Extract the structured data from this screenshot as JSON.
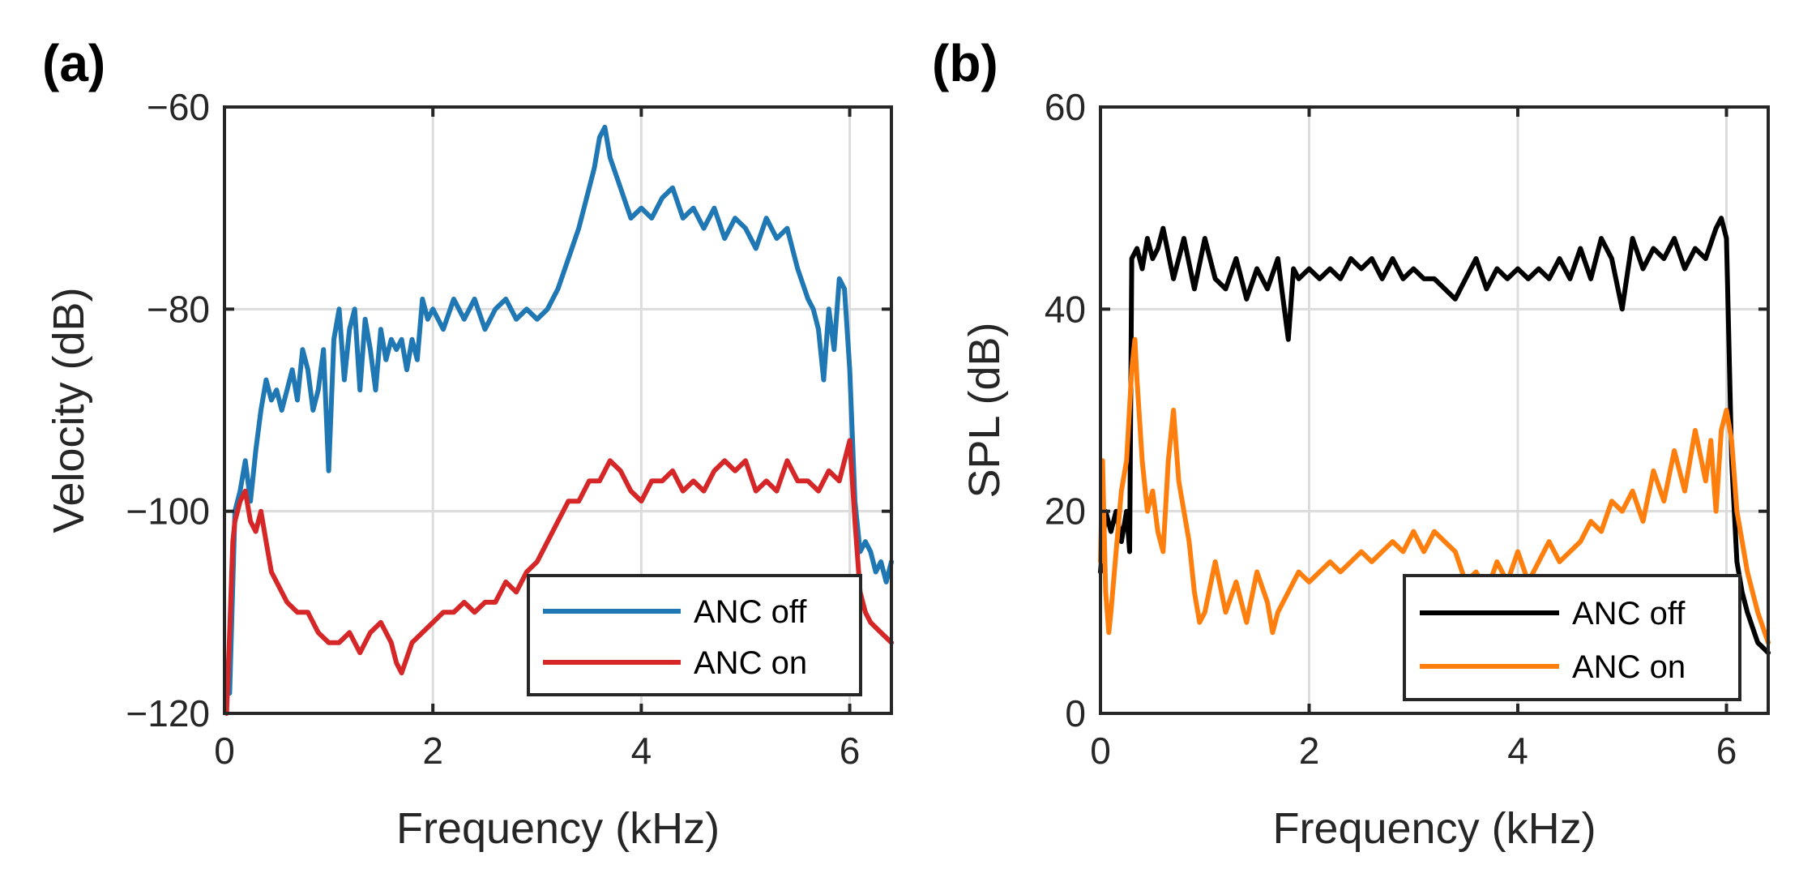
{
  "chart_data": [
    {
      "type": "line",
      "panel_label": "(a)",
      "xlabel": "Frequency (kHz)",
      "ylabel": "Velocity (dB)",
      "xlim": [
        0,
        6.4
      ],
      "ylim": [
        -120,
        -60
      ],
      "xticks": [
        0,
        2,
        4,
        6
      ],
      "xtick_labels": [
        "0",
        "2",
        "4",
        "6"
      ],
      "yticks": [
        -120,
        -100,
        -80,
        -60
      ],
      "ytick_labels": [
        "−120",
        "−100",
        "−80",
        "−60"
      ],
      "grid": true,
      "legend_position": "bottom-right",
      "series": [
        {
          "name": "ANC off",
          "color": "#1f77b4",
          "x": [
            0.05,
            0.1,
            0.15,
            0.2,
            0.25,
            0.3,
            0.35,
            0.4,
            0.45,
            0.5,
            0.55,
            0.6,
            0.65,
            0.7,
            0.75,
            0.8,
            0.85,
            0.9,
            0.95,
            1.0,
            1.05,
            1.1,
            1.15,
            1.2,
            1.25,
            1.3,
            1.35,
            1.4,
            1.45,
            1.5,
            1.55,
            1.6,
            1.65,
            1.7,
            1.75,
            1.8,
            1.85,
            1.9,
            1.95,
            2.0,
            2.1,
            2.2,
            2.3,
            2.4,
            2.5,
            2.6,
            2.7,
            2.8,
            2.9,
            3.0,
            3.1,
            3.2,
            3.3,
            3.4,
            3.5,
            3.55,
            3.6,
            3.65,
            3.7,
            3.8,
            3.9,
            4.0,
            4.1,
            4.2,
            4.3,
            4.4,
            4.5,
            4.6,
            4.7,
            4.8,
            4.9,
            5.0,
            5.1,
            5.2,
            5.3,
            5.4,
            5.5,
            5.6,
            5.65,
            5.7,
            5.75,
            5.8,
            5.85,
            5.9,
            5.95,
            6.0,
            6.05,
            6.1,
            6.15,
            6.2,
            6.25,
            6.3,
            6.35,
            6.4
          ],
          "values": [
            -118,
            -100,
            -98,
            -95,
            -99,
            -94,
            -90,
            -87,
            -89,
            -88,
            -90,
            -88,
            -86,
            -89,
            -84,
            -86,
            -90,
            -88,
            -84,
            -96,
            -83,
            -80,
            -87,
            -82,
            -80,
            -88,
            -81,
            -84,
            -88,
            -82,
            -85,
            -83,
            -84,
            -83,
            -86,
            -83,
            -85,
            -79,
            -81,
            -80,
            -82,
            -79,
            -81,
            -79,
            -82,
            -80,
            -79,
            -81,
            -80,
            -81,
            -80,
            -78,
            -75,
            -72,
            -68,
            -66,
            -63,
            -62,
            -65,
            -68,
            -71,
            -70,
            -71,
            -69,
            -68,
            -71,
            -70,
            -72,
            -70,
            -73,
            -71,
            -72,
            -74,
            -71,
            -73,
            -72,
            -76,
            -79,
            -80,
            -82,
            -87,
            -80,
            -84,
            -77,
            -78,
            -86,
            -99,
            -104,
            -103,
            -104,
            -106,
            -105,
            -107,
            -105
          ]
        },
        {
          "name": "ANC on",
          "color": "#d62728",
          "x": [
            0.02,
            0.05,
            0.08,
            0.1,
            0.15,
            0.2,
            0.25,
            0.3,
            0.35,
            0.4,
            0.45,
            0.5,
            0.6,
            0.7,
            0.8,
            0.9,
            1.0,
            1.1,
            1.2,
            1.3,
            1.4,
            1.5,
            1.6,
            1.65,
            1.7,
            1.8,
            1.9,
            2.0,
            2.1,
            2.2,
            2.3,
            2.4,
            2.5,
            2.6,
            2.7,
            2.8,
            2.9,
            3.0,
            3.1,
            3.2,
            3.3,
            3.4,
            3.5,
            3.6,
            3.7,
            3.8,
            3.9,
            4.0,
            4.1,
            4.2,
            4.3,
            4.4,
            4.5,
            4.6,
            4.7,
            4.8,
            4.9,
            5.0,
            5.1,
            5.2,
            5.3,
            5.4,
            5.5,
            5.6,
            5.7,
            5.8,
            5.9,
            6.0,
            6.05,
            6.1,
            6.15,
            6.2,
            6.3,
            6.4
          ],
          "values": [
            -120,
            -112,
            -103,
            -101,
            -99,
            -98,
            -101,
            -102,
            -100,
            -103,
            -106,
            -107,
            -109,
            -110,
            -110,
            -112,
            -113,
            -113,
            -112,
            -114,
            -112,
            -111,
            -113,
            -115,
            -116,
            -113,
            -112,
            -111,
            -110,
            -110,
            -109,
            -110,
            -109,
            -109,
            -107,
            -108,
            -106,
            -105,
            -103,
            -101,
            -99,
            -99,
            -97,
            -97,
            -95,
            -96,
            -98,
            -99,
            -97,
            -97,
            -96,
            -98,
            -97,
            -98,
            -96,
            -95,
            -96,
            -95,
            -98,
            -97,
            -98,
            -95,
            -97,
            -97,
            -98,
            -96,
            -97,
            -93,
            -101,
            -108,
            -110,
            -111,
            -112,
            -113
          ]
        }
      ]
    },
    {
      "type": "line",
      "panel_label": "(b)",
      "xlabel": "Frequency (kHz)",
      "ylabel": "SPL (dB)",
      "xlim": [
        0,
        6.4
      ],
      "ylim": [
        0,
        60
      ],
      "xticks": [
        0,
        2,
        4,
        6
      ],
      "xtick_labels": [
        "0",
        "2",
        "4",
        "6"
      ],
      "yticks": [
        0,
        20,
        40,
        60
      ],
      "ytick_labels": [
        "0",
        "20",
        "40",
        "60"
      ],
      "grid": true,
      "legend_position": "bottom-right",
      "series": [
        {
          "name": "ANC off",
          "color": "#000000",
          "x": [
            0.0,
            0.05,
            0.1,
            0.15,
            0.2,
            0.25,
            0.28,
            0.3,
            0.35,
            0.4,
            0.45,
            0.5,
            0.55,
            0.6,
            0.7,
            0.8,
            0.9,
            1.0,
            1.1,
            1.2,
            1.3,
            1.4,
            1.5,
            1.6,
            1.7,
            1.75,
            1.8,
            1.85,
            1.9,
            2.0,
            2.1,
            2.2,
            2.3,
            2.4,
            2.5,
            2.6,
            2.7,
            2.8,
            2.9,
            3.0,
            3.1,
            3.2,
            3.3,
            3.4,
            3.5,
            3.6,
            3.7,
            3.8,
            3.9,
            4.0,
            4.1,
            4.2,
            4.3,
            4.4,
            4.5,
            4.6,
            4.7,
            4.8,
            4.9,
            5.0,
            5.1,
            5.2,
            5.3,
            5.4,
            5.5,
            5.6,
            5.7,
            5.8,
            5.9,
            5.95,
            6.0,
            6.05,
            6.1,
            6.15,
            6.2,
            6.3,
            6.4
          ],
          "values": [
            14,
            20,
            18,
            20,
            17,
            20,
            16,
            45,
            46,
            44,
            47,
            45,
            46,
            48,
            43,
            47,
            42,
            47,
            43,
            42,
            45,
            41,
            44,
            42,
            45,
            41,
            37,
            44,
            43,
            44,
            43,
            44,
            43,
            45,
            44,
            45,
            43,
            45,
            43,
            44,
            43,
            43,
            42,
            41,
            43,
            45,
            42,
            44,
            43,
            44,
            43,
            44,
            43,
            45,
            43,
            46,
            43,
            47,
            45,
            40,
            47,
            44,
            46,
            45,
            47,
            44,
            46,
            45,
            48,
            49,
            47,
            25,
            15,
            12,
            10,
            7,
            6
          ]
        },
        {
          "name": "ANC on",
          "color": "#ff7f0e",
          "x": [
            0.0,
            0.02,
            0.05,
            0.08,
            0.1,
            0.15,
            0.2,
            0.25,
            0.3,
            0.33,
            0.35,
            0.4,
            0.45,
            0.5,
            0.55,
            0.6,
            0.65,
            0.7,
            0.75,
            0.8,
            0.85,
            0.9,
            0.95,
            1.0,
            1.1,
            1.2,
            1.3,
            1.4,
            1.5,
            1.6,
            1.65,
            1.7,
            1.8,
            1.9,
            2.0,
            2.1,
            2.2,
            2.3,
            2.4,
            2.5,
            2.6,
            2.7,
            2.8,
            2.9,
            3.0,
            3.1,
            3.2,
            3.3,
            3.4,
            3.5,
            3.6,
            3.7,
            3.8,
            3.9,
            4.0,
            4.1,
            4.2,
            4.3,
            4.4,
            4.5,
            4.6,
            4.7,
            4.8,
            4.9,
            5.0,
            5.1,
            5.2,
            5.3,
            5.4,
            5.5,
            5.6,
            5.7,
            5.8,
            5.85,
            5.9,
            5.95,
            6.0,
            6.05,
            6.1,
            6.2,
            6.3,
            6.4
          ],
          "values": [
            15,
            25,
            12,
            8,
            10,
            16,
            22,
            25,
            34,
            37,
            33,
            25,
            20,
            22,
            18,
            16,
            25,
            30,
            23,
            20,
            17,
            12,
            9,
            10,
            15,
            10,
            13,
            9,
            14,
            11,
            8,
            10,
            12,
            14,
            13,
            14,
            15,
            14,
            15,
            16,
            15,
            16,
            17,
            16,
            18,
            16,
            18,
            17,
            16,
            13,
            14,
            12,
            15,
            13,
            16,
            13,
            15,
            17,
            15,
            16,
            17,
            19,
            18,
            21,
            20,
            22,
            19,
            24,
            21,
            26,
            22,
            28,
            23,
            27,
            20,
            28,
            30,
            27,
            20,
            14,
            10,
            7
          ]
        }
      ]
    }
  ]
}
